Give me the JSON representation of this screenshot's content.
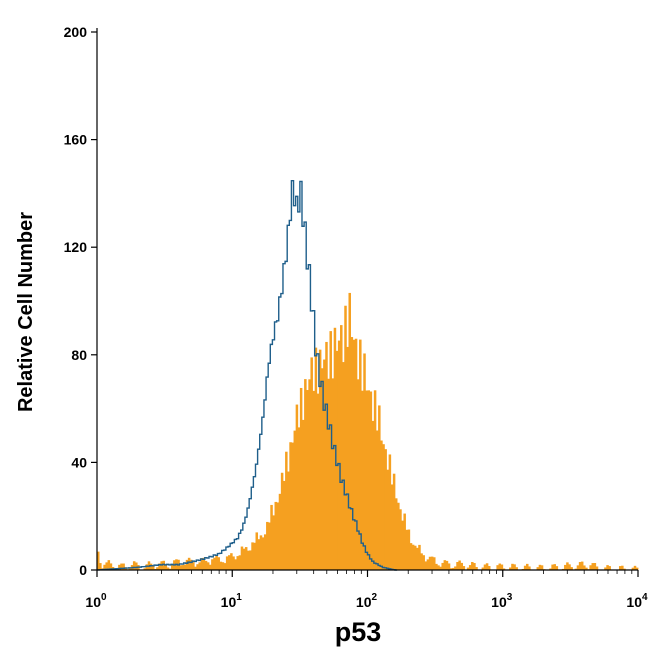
{
  "chart_data": {
    "type": "histogram",
    "title": "",
    "xlabel": "p53",
    "ylabel": "Relative Cell Number",
    "x_scale": "log",
    "xlim": [
      1,
      10000
    ],
    "ylim": [
      0,
      200
    ],
    "y_ticks": [
      0,
      40,
      80,
      120,
      160,
      200
    ],
    "x_ticks": [
      {
        "value": 1,
        "base": "10",
        "exp": "0"
      },
      {
        "value": 10,
        "base": "10",
        "exp": "1"
      },
      {
        "value": 100,
        "base": "10",
        "exp": "2"
      },
      {
        "value": 1000,
        "base": "10",
        "exp": "3"
      },
      {
        "value": 10000,
        "base": "10",
        "exp": "4"
      }
    ],
    "grid": false,
    "legend": "none",
    "series": [
      {
        "style": "filled",
        "color": "#f5a020",
        "points": [
          [
            1.0,
            25
          ],
          [
            1.02,
            5
          ],
          [
            1.1,
            2
          ],
          [
            1.3,
            2
          ],
          [
            1.5,
            1
          ],
          [
            1.8,
            2
          ],
          [
            2.2,
            1
          ],
          [
            2.6,
            2
          ],
          [
            3.0,
            2
          ],
          [
            3.5,
            2
          ],
          [
            4.0,
            3
          ],
          [
            5.0,
            3
          ],
          [
            6.0,
            3
          ],
          [
            7.0,
            4
          ],
          [
            8.0,
            4
          ],
          [
            9.0,
            4
          ],
          [
            10.0,
            5
          ],
          [
            11.0,
            6
          ],
          [
            12.0,
            7
          ],
          [
            13.0,
            8
          ],
          [
            14.0,
            10
          ],
          [
            16.0,
            12
          ],
          [
            18.0,
            16
          ],
          [
            20.0,
            22
          ],
          [
            22.0,
            28
          ],
          [
            24.0,
            35
          ],
          [
            26.0,
            42
          ],
          [
            28.0,
            50
          ],
          [
            30.0,
            56
          ],
          [
            32.0,
            60
          ],
          [
            34.0,
            66
          ],
          [
            37.0,
            71
          ],
          [
            40.0,
            74
          ],
          [
            44.0,
            76
          ],
          [
            48.0,
            78
          ],
          [
            52.0,
            80
          ],
          [
            56.0,
            82
          ],
          [
            60.0,
            84
          ],
          [
            64.0,
            86
          ],
          [
            68.0,
            88
          ],
          [
            72.0,
            96
          ],
          [
            76.0,
            90
          ],
          [
            80.0,
            84
          ],
          [
            85.0,
            80
          ],
          [
            90.0,
            76
          ],
          [
            95.0,
            72
          ],
          [
            100.0,
            68
          ],
          [
            110.0,
            62
          ],
          [
            120.0,
            56
          ],
          [
            130.0,
            48
          ],
          [
            140.0,
            42
          ],
          [
            150.0,
            35
          ],
          [
            165.0,
            28
          ],
          [
            180.0,
            20
          ],
          [
            200.0,
            14
          ],
          [
            230.0,
            8
          ],
          [
            270.0,
            5
          ],
          [
            320.0,
            3
          ],
          [
            400.0,
            2
          ],
          [
            500.0,
            2
          ],
          [
            700.0,
            1
          ],
          [
            1000.0,
            1
          ],
          [
            2000.0,
            0.5
          ],
          [
            4500.0,
            2
          ],
          [
            5000.0,
            0.5
          ],
          [
            10000.0,
            0
          ]
        ]
      },
      {
        "style": "outline",
        "color": "#1f5f8b",
        "points": [
          [
            1.0,
            0
          ],
          [
            2.0,
            1
          ],
          [
            3.0,
            2
          ],
          [
            4.0,
            2
          ],
          [
            5.0,
            3
          ],
          [
            6.0,
            4
          ],
          [
            7.0,
            5
          ],
          [
            8.0,
            6
          ],
          [
            9.0,
            8
          ],
          [
            10.0,
            10
          ],
          [
            11.0,
            12
          ],
          [
            12.0,
            16
          ],
          [
            13.0,
            22
          ],
          [
            14.0,
            30
          ],
          [
            15.0,
            38
          ],
          [
            16.0,
            48
          ],
          [
            17.0,
            58
          ],
          [
            18.0,
            70
          ],
          [
            19.0,
            80
          ],
          [
            20.0,
            86
          ],
          [
            22.0,
            96
          ],
          [
            24.0,
            110
          ],
          [
            26.0,
            125
          ],
          [
            27.0,
            135
          ],
          [
            28.0,
            141
          ],
          [
            29.0,
            140
          ],
          [
            30.0,
            134
          ],
          [
            31.0,
            138
          ],
          [
            32.0,
            140
          ],
          [
            33.0,
            136
          ],
          [
            34.0,
            128
          ],
          [
            36.0,
            116
          ],
          [
            38.0,
            104
          ],
          [
            40.0,
            92
          ],
          [
            42.0,
            80
          ],
          [
            45.0,
            70
          ],
          [
            48.0,
            62
          ],
          [
            52.0,
            54
          ],
          [
            56.0,
            46
          ],
          [
            60.0,
            40
          ],
          [
            64.0,
            34
          ],
          [
            70.0,
            28
          ],
          [
            76.0,
            22
          ],
          [
            84.0,
            16
          ],
          [
            92.0,
            10
          ],
          [
            100.0,
            6
          ],
          [
            110.0,
            3
          ],
          [
            130.0,
            1
          ],
          [
            160.0,
            0
          ]
        ]
      }
    ]
  }
}
